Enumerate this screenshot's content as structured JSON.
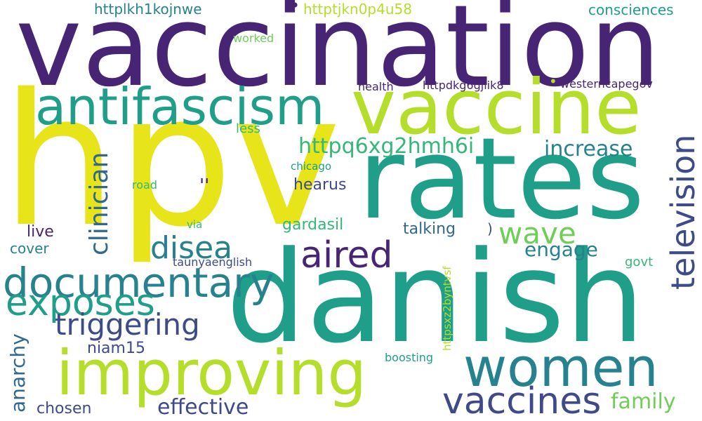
{
  "colors": {
    "background": "#ffffff",
    "purple": "#482475",
    "indigo": "#3e4a89",
    "blue": "#31688e",
    "teal": "#26828e",
    "green_teal": "#1f9e89",
    "green": "#35b779",
    "light_green": "#6ece58",
    "yellow_green": "#b5de2b",
    "yellow": "#e7e419"
  },
  "words": {
    "vaccination": "vaccination",
    "hpv": "hpv",
    "rates": "rates",
    "danish": "danish",
    "vaccine": "vaccine",
    "antifascism": "antifascism",
    "improving": "improving",
    "women": "women",
    "vaccines": "vaccines",
    "documentary": "documentary",
    "television": "television",
    "aired": "aired",
    "exposes": "exposes",
    "triggering": "triggering",
    "disea": "disea",
    "wave": "wave",
    "clinician": "clinician",
    "httpq6xg2hmh6i": "httpq6xg2hmh6i",
    "increase": "increase",
    "engage": "engage",
    "effective": "effective",
    "family": "family",
    "anarchy": "anarchy",
    "hearus": "hearus",
    "gardasil": "gardasil",
    "talking": "talking",
    "live": "live",
    "cover": "cover",
    "niam15": "niam15",
    "chosen": "chosen",
    "httplkh1kojnwe": "httplkh1kojnwe",
    "httptjkn0p4u58": "httptjkn0p4u58",
    "consciences": "consciences",
    "worked": "worked",
    "health": "health",
    "httpdkg6gjiik8": "httpdkg6gjiik8",
    "westerncapegov": "westerncapegov",
    "less": "less",
    "chicago": "chicago",
    "road": "road",
    "via": "via",
    "taunyaenglish": "taunyaenglish",
    "govt": "govt",
    "boosting": "boosting",
    "httpsxz2byntvsf": "httpsxz2byntvsf",
    "quote_marks": "''",
    "paren": ")",
    "dot_top": "•",
    "dot_mid": "•"
  }
}
